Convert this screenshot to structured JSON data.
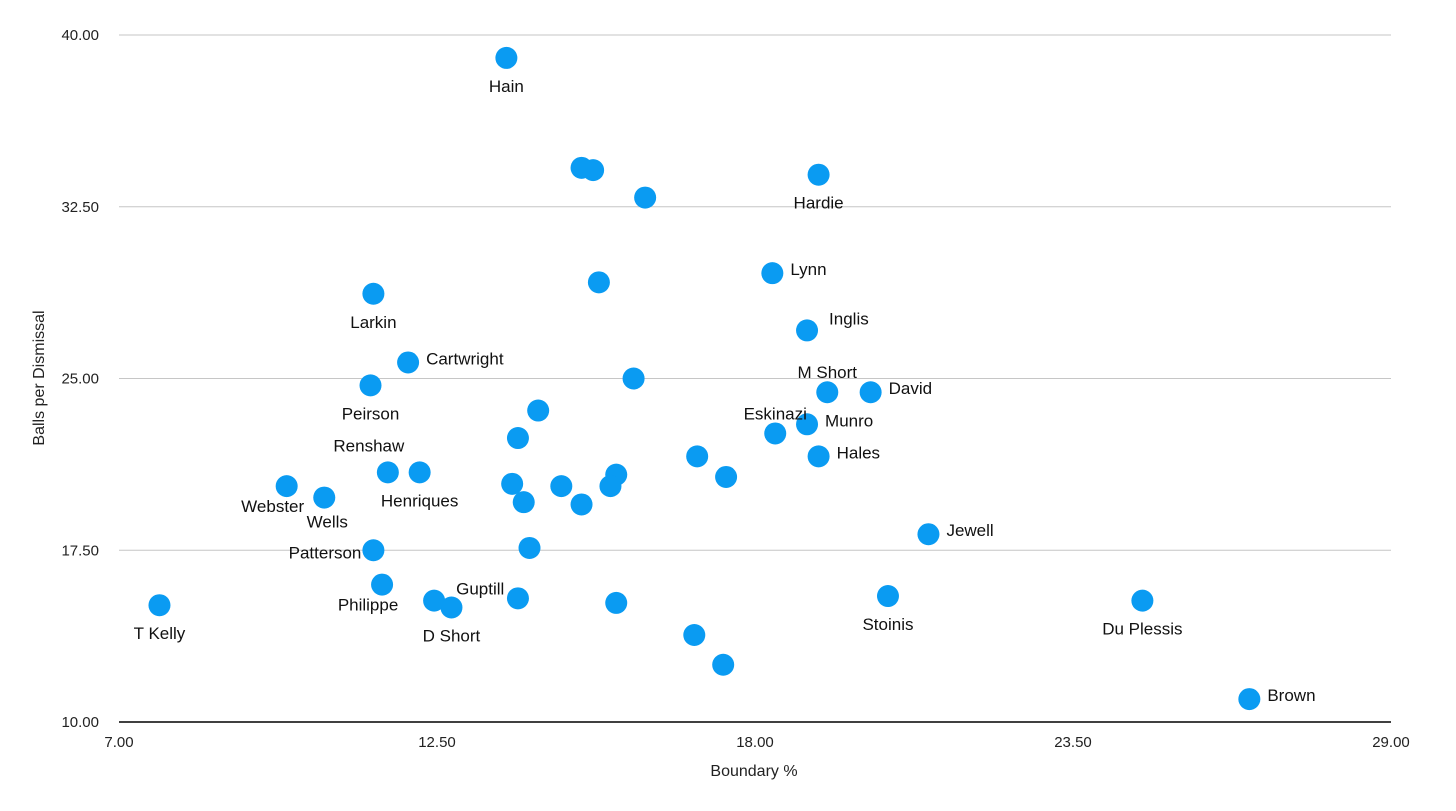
{
  "chart_data": {
    "type": "scatter",
    "xlabel": "Boundary %",
    "ylabel": "Balls per Dismissal",
    "xlim": [
      7,
      29
    ],
    "ylim": [
      10,
      40
    ],
    "x_ticks": [
      "7.00",
      "12.50",
      "18.00",
      "23.50",
      "29.00"
    ],
    "y_ticks": [
      "10.00",
      "17.50",
      "25.00",
      "32.50",
      "40.00"
    ],
    "grid": "horizontal",
    "legend": "none",
    "point_color": "#0a9bf2",
    "points": [
      {
        "x": 13.7,
        "y": 39.0,
        "label": "Hain",
        "label_pos": "below"
      },
      {
        "x": 15.0,
        "y": 34.2,
        "label": "",
        "label_pos": "none"
      },
      {
        "x": 15.2,
        "y": 34.1,
        "label": "",
        "label_pos": "none"
      },
      {
        "x": 16.1,
        "y": 32.9,
        "label": "",
        "label_pos": "none"
      },
      {
        "x": 19.1,
        "y": 33.9,
        "label": "Hardie",
        "label_pos": "below"
      },
      {
        "x": 18.3,
        "y": 29.6,
        "label": "Lynn",
        "label_pos": "right"
      },
      {
        "x": 15.3,
        "y": 29.2,
        "label": "",
        "label_pos": "none"
      },
      {
        "x": 11.4,
        "y": 28.7,
        "label": "Larkin",
        "label_pos": "below"
      },
      {
        "x": 18.9,
        "y": 27.1,
        "label": "Inglis",
        "label_pos": "upright"
      },
      {
        "x": 12.0,
        "y": 25.7,
        "label": "Cartwright",
        "label_pos": "right"
      },
      {
        "x": 11.35,
        "y": 24.7,
        "label": "Peirson",
        "label_pos": "below"
      },
      {
        "x": 15.9,
        "y": 25.0,
        "label": "",
        "label_pos": "none"
      },
      {
        "x": 19.25,
        "y": 24.4,
        "label": "M Short",
        "label_pos": "above"
      },
      {
        "x": 20.0,
        "y": 24.4,
        "label": "David",
        "label_pos": "right"
      },
      {
        "x": 14.25,
        "y": 23.6,
        "label": "",
        "label_pos": "none"
      },
      {
        "x": 18.9,
        "y": 23.0,
        "label": "Munro",
        "label_pos": "right"
      },
      {
        "x": 18.35,
        "y": 22.6,
        "label": "Eskinazi",
        "label_pos": "above"
      },
      {
        "x": 13.9,
        "y": 22.4,
        "label": "",
        "label_pos": "none"
      },
      {
        "x": 17.0,
        "y": 21.6,
        "label": "",
        "label_pos": "none"
      },
      {
        "x": 19.1,
        "y": 21.6,
        "label": "Hales",
        "label_pos": "right"
      },
      {
        "x": 11.65,
        "y": 20.9,
        "label": "Renshaw",
        "label_pos": "aboveleft"
      },
      {
        "x": 12.2,
        "y": 20.9,
        "label": "Henriques",
        "label_pos": "below"
      },
      {
        "x": 15.6,
        "y": 20.8,
        "label": "",
        "label_pos": "none"
      },
      {
        "x": 17.5,
        "y": 20.7,
        "label": "",
        "label_pos": "none"
      },
      {
        "x": 9.9,
        "y": 20.3,
        "label": "Webster",
        "label_pos": "belowleft"
      },
      {
        "x": 13.8,
        "y": 20.4,
        "label": "",
        "label_pos": "none"
      },
      {
        "x": 14.65,
        "y": 20.3,
        "label": "",
        "label_pos": "none"
      },
      {
        "x": 15.5,
        "y": 20.3,
        "label": "",
        "label_pos": "none"
      },
      {
        "x": 10.55,
        "y": 19.8,
        "label": "Wells",
        "label_pos": "belowright"
      },
      {
        "x": 14.0,
        "y": 19.6,
        "label": "",
        "label_pos": "none"
      },
      {
        "x": 15.0,
        "y": 19.5,
        "label": "",
        "label_pos": "none"
      },
      {
        "x": 21.0,
        "y": 18.2,
        "label": "Jewell",
        "label_pos": "right"
      },
      {
        "x": 14.1,
        "y": 17.6,
        "label": "",
        "label_pos": "none"
      },
      {
        "x": 11.4,
        "y": 17.5,
        "label": "Patterson",
        "label_pos": "left"
      },
      {
        "x": 11.55,
        "y": 16.0,
        "label": "Philippe",
        "label_pos": "belowleft"
      },
      {
        "x": 12.45,
        "y": 15.3,
        "label": "Guptill",
        "label_pos": "upright"
      },
      {
        "x": 12.75,
        "y": 15.0,
        "label": "D Short",
        "label_pos": "below"
      },
      {
        "x": 13.9,
        "y": 15.4,
        "label": "",
        "label_pos": "none"
      },
      {
        "x": 15.6,
        "y": 15.2,
        "label": "",
        "label_pos": "none"
      },
      {
        "x": 20.3,
        "y": 15.5,
        "label": "Stoinis",
        "label_pos": "below"
      },
      {
        "x": 24.7,
        "y": 15.3,
        "label": "Du Plessis",
        "label_pos": "below"
      },
      {
        "x": 7.7,
        "y": 15.1,
        "label": "T Kelly",
        "label_pos": "below"
      },
      {
        "x": 16.95,
        "y": 13.8,
        "label": "",
        "label_pos": "none"
      },
      {
        "x": 17.45,
        "y": 12.5,
        "label": "",
        "label_pos": "none"
      },
      {
        "x": 26.55,
        "y": 11.0,
        "label": "Brown",
        "label_pos": "right"
      }
    ]
  }
}
